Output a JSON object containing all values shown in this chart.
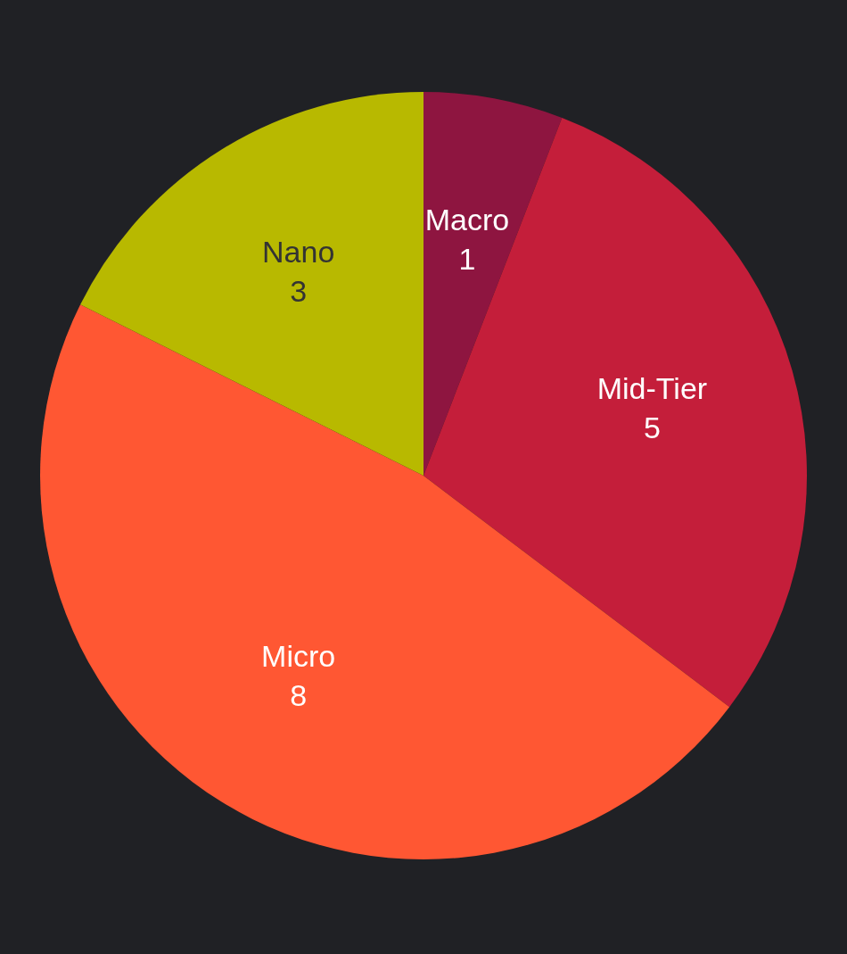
{
  "chart_data": {
    "type": "pie",
    "categories": [
      "Macro",
      "Mid-Tier",
      "Micro",
      "Nano"
    ],
    "values": [
      1,
      5,
      8,
      3
    ],
    "colors": [
      "#8e1540",
      "#c41e3a",
      "#ff5733",
      "#b8b900"
    ],
    "data_labels": true,
    "legend": false
  }
}
